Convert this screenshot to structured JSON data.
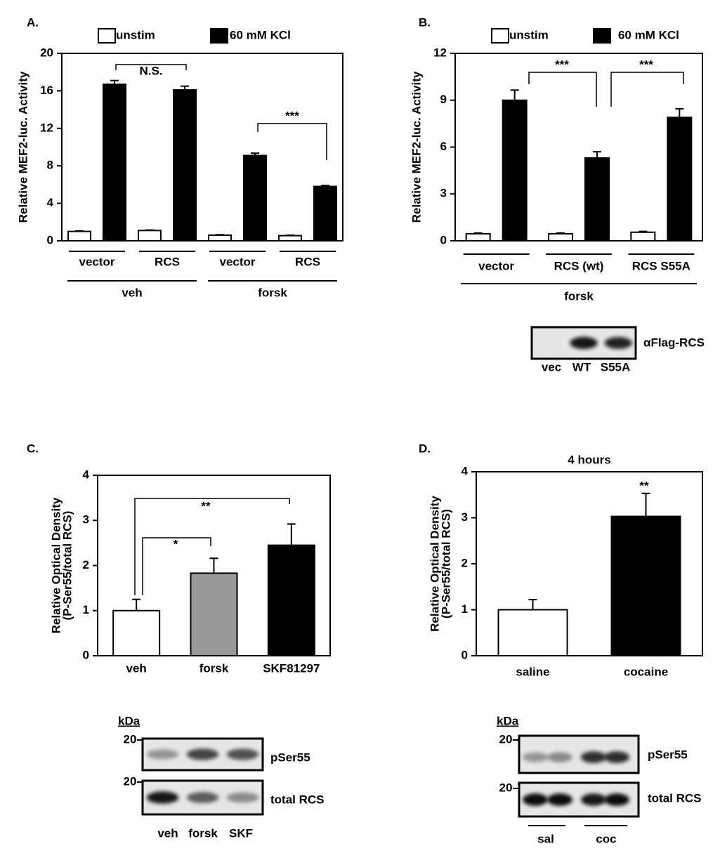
{
  "chart_data": [
    {
      "type": "bar",
      "panel": "A.",
      "ylabel": [
        "Relative MEF2-luc. Activity"
      ],
      "categories": [
        "vector",
        "RCS",
        "vector",
        "RCS"
      ],
      "groups": [
        "veh",
        "forsk"
      ],
      "series": [
        {
          "name": "unstim",
          "color": "#ffffff",
          "values": [
            1.0,
            1.1,
            0.6,
            0.55
          ],
          "errors": [
            0.05,
            0.05,
            0.05,
            0.05
          ]
        },
        {
          "name": "60 mM KCl",
          "color": "#000000",
          "values": [
            16.7,
            16.1,
            9.1,
            5.8
          ],
          "errors": [
            0.4,
            0.4,
            0.25,
            0.1
          ]
        }
      ],
      "ylim": [
        0,
        20
      ],
      "yticks": [
        0,
        4,
        8,
        12,
        16,
        20
      ],
      "annotations": [
        "N.S.",
        "***"
      ]
    },
    {
      "type": "bar",
      "panel": "B.",
      "ylabel": [
        "Relative MEF2-luc. Activity"
      ],
      "categories": [
        "vector",
        "RCS (wt)",
        "RCS S55A"
      ],
      "groups": [
        "forsk"
      ],
      "series": [
        {
          "name": "unstim",
          "color": "#ffffff",
          "values": [
            0.45,
            0.45,
            0.55
          ],
          "errors": [
            0.05,
            0.05,
            0.05
          ]
        },
        {
          "name": "60 mM KCl",
          "color": "#000000",
          "values": [
            9.0,
            5.3,
            7.9
          ],
          "errors": [
            0.65,
            0.4,
            0.55
          ]
        }
      ],
      "ylim": [
        0,
        12
      ],
      "yticks": [
        0,
        3,
        6,
        9,
        12
      ],
      "annotations": [
        "***",
        "***"
      ],
      "blot": {
        "bands": [
          "αFlag-RCS"
        ],
        "lanes": [
          "vec",
          "WT",
          "S55A"
        ]
      }
    },
    {
      "type": "bar",
      "panel": "C.",
      "ylabel": [
        "Relative Optical Density",
        "(P-Ser55/total RCS)"
      ],
      "categories": [
        "veh",
        "forsk",
        "SKF81297"
      ],
      "series": [
        {
          "colors": [
            "#ffffff",
            "#999999",
            "#000000"
          ],
          "values": [
            1.0,
            1.83,
            2.45
          ],
          "errors": [
            0.25,
            0.33,
            0.47
          ]
        }
      ],
      "ylim": [
        0,
        4
      ],
      "yticks": [
        0,
        1,
        2,
        3,
        4
      ],
      "annotations": [
        "*",
        "**"
      ],
      "blot": {
        "unit": "kDa",
        "markers": [
          "20",
          "20"
        ],
        "bands": [
          "pSer55",
          "total RCS"
        ],
        "lanes": [
          "veh",
          "forsk",
          "SKF"
        ]
      }
    },
    {
      "type": "bar",
      "panel": "D.",
      "title": "4 hours",
      "ylabel": [
        "Relative Optical Density",
        "(P-Ser55/total RCS)"
      ],
      "categories": [
        "saline",
        "cocaine"
      ],
      "series": [
        {
          "colors": [
            "#ffffff",
            "#000000"
          ],
          "values": [
            1.0,
            3.03
          ],
          "errors": [
            0.22,
            0.5
          ]
        }
      ],
      "ylim": [
        0,
        4
      ],
      "yticks": [
        0,
        1,
        2,
        3,
        4
      ],
      "annotations": [
        "**"
      ],
      "blot": {
        "unit": "kDa",
        "markers": [
          "20",
          "20"
        ],
        "bands": [
          "pSer55",
          "total RCS"
        ],
        "lanes": [
          "sal",
          "coc"
        ]
      }
    }
  ]
}
